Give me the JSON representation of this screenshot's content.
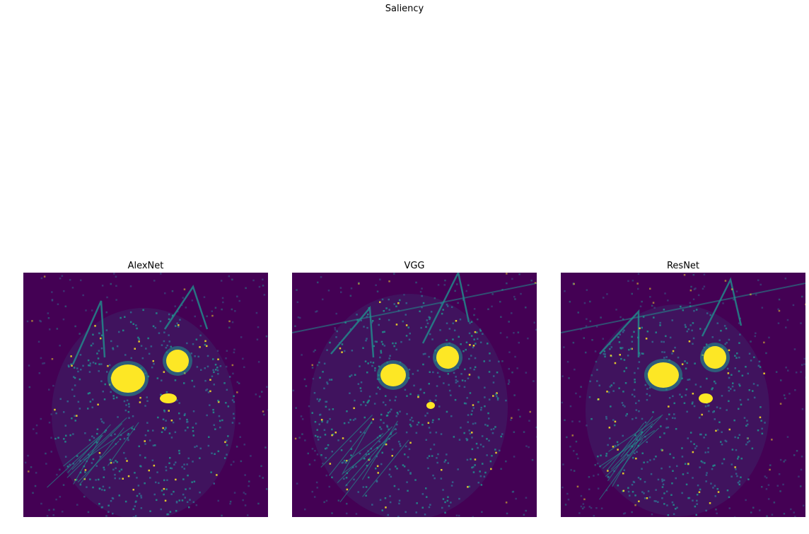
{
  "figure": {
    "suptitle": "Saliency",
    "colormap": "viridis",
    "colors": {
      "low": "#440154",
      "mid": "#31688e",
      "teal": "#21908d",
      "high": "#fde725"
    }
  },
  "panels": [
    {
      "title": "AlexNet",
      "seed": 11
    },
    {
      "title": "VGG",
      "seed": 23
    },
    {
      "title": "ResNet",
      "seed": 37
    }
  ]
}
